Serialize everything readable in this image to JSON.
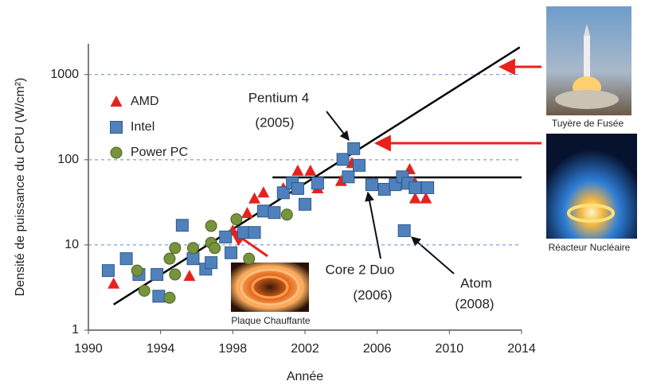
{
  "chart_data": {
    "type": "scatter",
    "x_label": "Année",
    "y_label": "Densité de puissance du CPU (W/cm²)",
    "log_y": true,
    "grid": true,
    "xlim": [
      1990,
      2014
    ],
    "ylim": [
      1,
      2300
    ],
    "xticks": [
      1990,
      1994,
      1998,
      2002,
      2006,
      2010,
      2014
    ],
    "yticks": [
      1,
      10,
      100,
      1000
    ],
    "series": [
      {
        "name": "AMD",
        "marker": "triangle",
        "color": "#e8211d",
        "x": [
          1991.4,
          1995.6,
          1998.0,
          1998.8,
          1999.2,
          1999.7,
          2000.8,
          2001.6,
          2002.3,
          2002.7,
          2004.0,
          2004.6,
          2005.8,
          2007.8,
          2008.1,
          2008.1,
          2008.7
        ],
        "values": [
          3.5,
          4.3,
          14.7,
          23.6,
          34.9,
          41,
          46,
          74,
          74,
          46,
          56,
          91,
          53,
          77,
          53,
          35,
          35
        ]
      },
      {
        "name": "Intel",
        "marker": "square",
        "color": "#4f81bd",
        "x": [
          1991.1,
          1992.1,
          1992.8,
          1993.8,
          1993.9,
          1995.2,
          1995.8,
          1996.5,
          1996.8,
          1997.6,
          1997.9,
          1998.6,
          1999.2,
          1999.7,
          2000.3,
          2000.8,
          2001.3,
          2001.6,
          2002.0,
          2002.7,
          2004.1,
          2004.4,
          2004.7,
          2005.0,
          2005.7,
          2006.4,
          2007.0,
          2007.4,
          2007.5,
          2007.7,
          2008.1,
          2008.8
        ],
        "values": [
          5.0,
          6.9,
          4.5,
          4.5,
          2.5,
          17,
          6.9,
          5.2,
          6.2,
          12.4,
          8.1,
          14,
          14,
          25,
          24,
          41,
          53,
          46,
          30,
          53,
          101,
          63,
          135,
          86,
          51,
          45,
          51,
          63,
          14.7,
          53,
          47,
          47
        ]
      },
      {
        "name": "Power PC",
        "marker": "circle",
        "color": "#77933c",
        "x": [
          1992.7,
          1993.1,
          1994.5,
          1994.8,
          1994.8,
          1994.5,
          1995.8,
          1996.8,
          1996.8,
          1997.0,
          1998.2,
          1998.9,
          2001.0
        ],
        "values": [
          5.0,
          2.9,
          6.9,
          9.2,
          4.5,
          2.4,
          9.2,
          16.7,
          10.6,
          9.2,
          20,
          6.9,
          22.7
        ]
      }
    ],
    "lines": [
      {
        "x": [
          1991.4,
          2013.9
        ],
        "values": [
          2,
          2090
        ]
      },
      {
        "x": [
          2000.2,
          2014
        ],
        "values": [
          62,
          62
        ]
      }
    ],
    "annotations": [
      "Pentium 4",
      "(2005)",
      "Core 2 Duo",
      "(2006)",
      "Atom",
      "(2008)"
    ],
    "image_captions": [
      "Tuyère de Fusée",
      "Réacteur Nucléaire",
      "Plaque Chauffante"
    ]
  }
}
